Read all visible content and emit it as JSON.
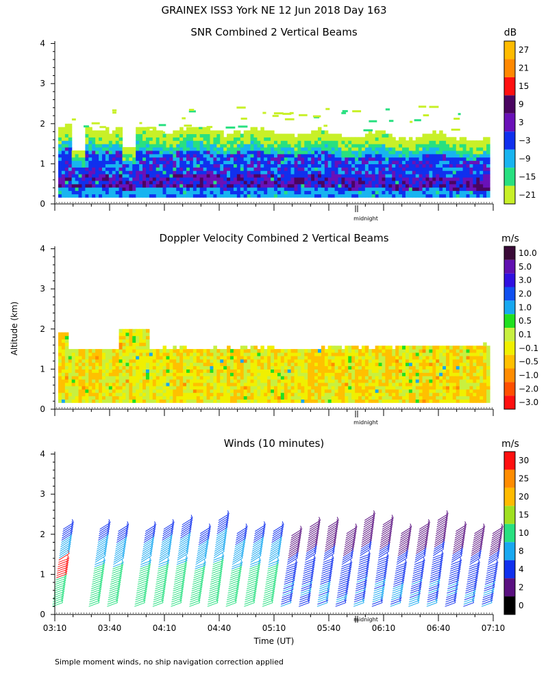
{
  "page": {
    "title": "GRAINEX ISS3 York NE  12 Jun 2018 Day 163",
    "ylabel": "Altitude (km)",
    "xlabel": "Time (UT)",
    "footnote": "Simple moment winds, no ship navigation correction applied",
    "midnight_label": "midnight"
  },
  "chart_data": [
    {
      "type": "heatmap",
      "title": "SNR Combined 2 Vertical Beams",
      "unit": "dB",
      "ylim": [
        0,
        4
      ],
      "yticks": [
        "0",
        "1",
        "2",
        "3",
        "4"
      ],
      "colorbar": [
        "27",
        "21",
        "15",
        "9",
        "3",
        "−3",
        "−9",
        "−15",
        "−21"
      ],
      "colorbar_colors": [
        "#ffbb00",
        "#ff8800",
        "#ff1010",
        "#4a0560",
        "#6a11b8",
        "#1030ee",
        "#18b4f0",
        "#28e080",
        "#c8f028"
      ],
      "coverage_top_km": {
        "start": 1.9,
        "middle": 1.75,
        "end": 1.6
      },
      "coverage_bottom_km": 0.1
    },
    {
      "type": "heatmap",
      "title": "Doppler Velocity Combined 2 Vertical Beams",
      "unit": "m/s",
      "ylim": [
        0,
        4
      ],
      "yticks": [
        "0",
        "1",
        "2",
        "3",
        "4"
      ],
      "colorbar": [
        "10.0",
        "5.0",
        "3.0",
        "2.0",
        "1.0",
        "0.5",
        "0.1",
        "−0.1",
        "−0.5",
        "−1.0",
        "−2.0",
        "−3.0"
      ],
      "colorbar_colors": [
        "#3a0a38",
        "#6010b0",
        "#3010e0",
        "#1050f0",
        "#18a8f0",
        "#20e020",
        "#c8f040",
        "#f0f000",
        "#ffc000",
        "#ff8c00",
        "#ff5000",
        "#ff1010"
      ],
      "coverage_top_km": {
        "start": 1.45,
        "end": 1.55
      },
      "coverage_bottom_km": 0.1
    },
    {
      "type": "scatter",
      "title": "Winds (10 minutes)",
      "unit": "m/s",
      "ylim": [
        0,
        4
      ],
      "yticks": [
        "0",
        "1",
        "2",
        "3",
        "4"
      ],
      "xticks": [
        "03:10",
        "03:40",
        "04:10",
        "04:40",
        "05:10",
        "05:40",
        "06:10",
        "06:40",
        "07:10"
      ],
      "colorbar": [
        "30",
        "25",
        "20",
        "15",
        "10",
        "8",
        "4",
        "2",
        "0"
      ],
      "colorbar_colors": [
        "#ff1010",
        "#ff8c00",
        "#ffbb00",
        "#a0e020",
        "#28e080",
        "#18a8f0",
        "#1030ee",
        "#5a1080",
        "#000000"
      ],
      "profile_times": [
        "03:10",
        "03:30",
        "03:40",
        "03:55",
        "04:05",
        "04:15",
        "04:25",
        "04:35",
        "04:45",
        "04:55",
        "05:05",
        "05:15",
        "05:25",
        "05:35",
        "05:45",
        "05:55",
        "06:05",
        "06:15",
        "06:25",
        "06:35",
        "06:45",
        "06:55",
        "07:05"
      ]
    }
  ]
}
